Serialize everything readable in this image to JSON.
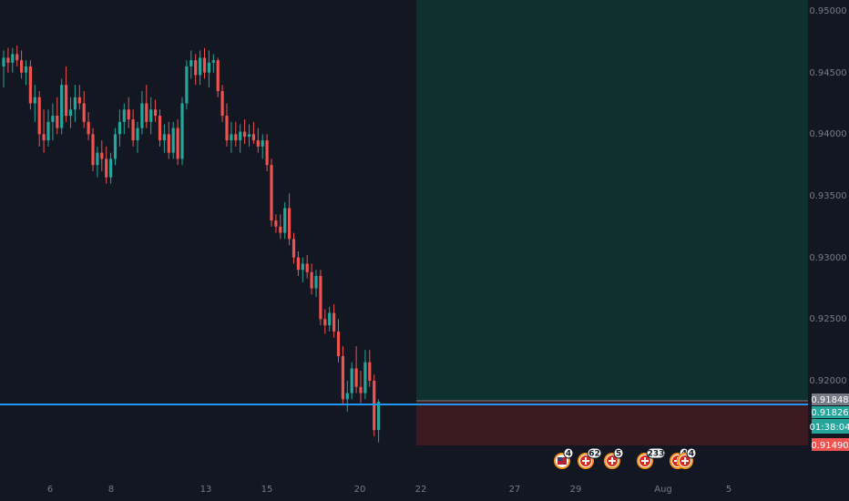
{
  "colors": {
    "background": "#131722",
    "up": "#26a69a",
    "down": "#ef5350",
    "profit_zone": "#0e302f",
    "loss_zone": "#3a1a1f",
    "hline": "#2196f3",
    "axis_text": "#787b86",
    "stop_tag": "#ef5350",
    "target_tag": "#787b86",
    "price_tag": "#26a69a"
  },
  "price_axis": {
    "ticks": [
      "0.95000",
      "0.94500",
      "0.94000",
      "0.93500",
      "0.93000",
      "0.92500",
      "0.92000"
    ],
    "labels": {
      "entry": "0.91848",
      "current": "0.91826",
      "countdown": "01:38:04",
      "stop": "0.91490"
    }
  },
  "time_axis": {
    "ticks": [
      "6",
      "8",
      "13",
      "15",
      "20",
      "22",
      "27",
      "29",
      "Aug",
      "5"
    ]
  },
  "event_markers": [
    {
      "icon": "us-flag-icon",
      "count": "4"
    },
    {
      "icon": "ch-flag-icon",
      "count": "62"
    },
    {
      "icon": "ch-flag-icon",
      "count": "5"
    },
    {
      "icon": "ch-flag-icon",
      "count": "233"
    },
    {
      "icon": "ch-flag-icon",
      "count": "4"
    },
    {
      "icon": "ch-flag-icon",
      "count": "4"
    }
  ],
  "chart_data": {
    "type": "candlestick",
    "symbol_quote_range": [
      0.91,
      0.951
    ],
    "horizontal_line_price": 0.91826,
    "position": {
      "type": "short",
      "entry": 0.91848,
      "target": 0.95,
      "stop": 0.9149
    },
    "candles": [
      [
        0.9455,
        0.9468,
        0.9438,
        0.9462
      ],
      [
        0.9462,
        0.947,
        0.945,
        0.9458
      ],
      [
        0.9458,
        0.947,
        0.945,
        0.9465
      ],
      [
        0.9465,
        0.9472,
        0.9455,
        0.946
      ],
      [
        0.946,
        0.9468,
        0.9445,
        0.945
      ],
      [
        0.945,
        0.946,
        0.944,
        0.9455
      ],
      [
        0.9455,
        0.946,
        0.942,
        0.9425
      ],
      [
        0.9425,
        0.944,
        0.941,
        0.943
      ],
      [
        0.943,
        0.9435,
        0.939,
        0.94
      ],
      [
        0.94,
        0.942,
        0.9385,
        0.9395
      ],
      [
        0.9395,
        0.942,
        0.939,
        0.941
      ],
      [
        0.941,
        0.9425,
        0.9395,
        0.9415
      ],
      [
        0.9415,
        0.943,
        0.94,
        0.9405
      ],
      [
        0.9405,
        0.9445,
        0.94,
        0.944
      ],
      [
        0.944,
        0.9455,
        0.941,
        0.9415
      ],
      [
        0.9415,
        0.943,
        0.9405,
        0.942
      ],
      [
        0.942,
        0.944,
        0.941,
        0.943
      ],
      [
        0.943,
        0.944,
        0.942,
        0.9425
      ],
      [
        0.9425,
        0.9435,
        0.9405,
        0.941
      ],
      [
        0.941,
        0.9418,
        0.9395,
        0.94
      ],
      [
        0.94,
        0.9405,
        0.937,
        0.9375
      ],
      [
        0.9375,
        0.939,
        0.9365,
        0.9385
      ],
      [
        0.9385,
        0.9395,
        0.937,
        0.938
      ],
      [
        0.938,
        0.939,
        0.936,
        0.9365
      ],
      [
        0.9365,
        0.9385,
        0.936,
        0.938
      ],
      [
        0.938,
        0.9405,
        0.9375,
        0.94
      ],
      [
        0.94,
        0.942,
        0.939,
        0.941
      ],
      [
        0.941,
        0.9425,
        0.94,
        0.942
      ],
      [
        0.942,
        0.943,
        0.9405,
        0.9412
      ],
      [
        0.9412,
        0.942,
        0.939,
        0.9395
      ],
      [
        0.9395,
        0.941,
        0.9385,
        0.9405
      ],
      [
        0.9405,
        0.9435,
        0.94,
        0.9425
      ],
      [
        0.9425,
        0.944,
        0.9405,
        0.941
      ],
      [
        0.941,
        0.943,
        0.94,
        0.942
      ],
      [
        0.942,
        0.9428,
        0.941,
        0.9415
      ],
      [
        0.9415,
        0.942,
        0.939,
        0.9395
      ],
      [
        0.9395,
        0.9408,
        0.9385,
        0.94
      ],
      [
        0.94,
        0.941,
        0.938,
        0.9385
      ],
      [
        0.9385,
        0.941,
        0.938,
        0.9405
      ],
      [
        0.9405,
        0.9412,
        0.9375,
        0.938
      ],
      [
        0.938,
        0.943,
        0.9375,
        0.9425
      ],
      [
        0.9425,
        0.946,
        0.942,
        0.9455
      ],
      [
        0.9455,
        0.9468,
        0.9445,
        0.946
      ],
      [
        0.946,
        0.9465,
        0.944,
        0.9448
      ],
      [
        0.9448,
        0.9468,
        0.944,
        0.9462
      ],
      [
        0.9462,
        0.947,
        0.9445,
        0.945
      ],
      [
        0.945,
        0.9468,
        0.9438,
        0.9458
      ],
      [
        0.9458,
        0.9465,
        0.945,
        0.946
      ],
      [
        0.946,
        0.9462,
        0.943,
        0.9435
      ],
      [
        0.9435,
        0.944,
        0.941,
        0.9415
      ],
      [
        0.9415,
        0.9425,
        0.939,
        0.9395
      ],
      [
        0.9395,
        0.941,
        0.9385,
        0.94
      ],
      [
        0.94,
        0.941,
        0.939,
        0.9395
      ],
      [
        0.9395,
        0.9408,
        0.9385,
        0.9402
      ],
      [
        0.9402,
        0.9412,
        0.9392,
        0.9398
      ],
      [
        0.9398,
        0.9408,
        0.939,
        0.94
      ],
      [
        0.94,
        0.941,
        0.9392,
        0.9395
      ],
      [
        0.9395,
        0.9405,
        0.9385,
        0.939
      ],
      [
        0.939,
        0.94,
        0.938,
        0.9395
      ],
      [
        0.9395,
        0.94,
        0.937,
        0.9375
      ],
      [
        0.9375,
        0.938,
        0.9325,
        0.933
      ],
      [
        0.933,
        0.9335,
        0.932,
        0.9325
      ],
      [
        0.9325,
        0.9335,
        0.9315,
        0.932
      ],
      [
        0.932,
        0.9345,
        0.9315,
        0.934
      ],
      [
        0.934,
        0.9352,
        0.931,
        0.9315
      ],
      [
        0.9315,
        0.932,
        0.9295,
        0.93
      ],
      [
        0.93,
        0.9305,
        0.9285,
        0.929
      ],
      [
        0.929,
        0.93,
        0.928,
        0.9295
      ],
      [
        0.9295,
        0.9302,
        0.9283,
        0.9288
      ],
      [
        0.9288,
        0.9295,
        0.927,
        0.9275
      ],
      [
        0.9275,
        0.929,
        0.9268,
        0.9285
      ],
      [
        0.9285,
        0.929,
        0.9245,
        0.925
      ],
      [
        0.925,
        0.9258,
        0.9238,
        0.9245
      ],
      [
        0.9245,
        0.926,
        0.924,
        0.9255
      ],
      [
        0.9255,
        0.9262,
        0.9235,
        0.924
      ],
      [
        0.924,
        0.925,
        0.9215,
        0.922
      ],
      [
        0.922,
        0.9228,
        0.918,
        0.9185
      ],
      [
        0.9185,
        0.92,
        0.9175,
        0.919
      ],
      [
        0.919,
        0.9215,
        0.9185,
        0.921
      ],
      [
        0.921,
        0.9228,
        0.919,
        0.9195
      ],
      [
        0.9195,
        0.9208,
        0.9182,
        0.919
      ],
      [
        0.919,
        0.9225,
        0.9185,
        0.9215
      ],
      [
        0.9215,
        0.9225,
        0.9195,
        0.92
      ],
      [
        0.92,
        0.9205,
        0.9155,
        0.916
      ],
      [
        0.916,
        0.9185,
        0.915,
        0.9183
      ]
    ]
  }
}
